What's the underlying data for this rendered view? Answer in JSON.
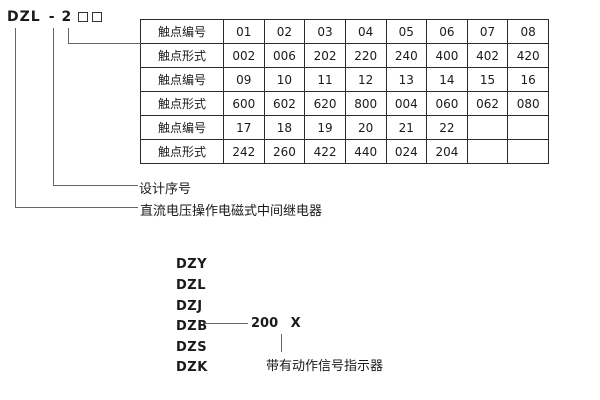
{
  "model_code": {
    "prefix": "DZL",
    "separator": "-",
    "design_number": "2"
  },
  "contact_table": {
    "rows": [
      {
        "label": "触点编号",
        "cells": [
          "01",
          "02",
          "03",
          "04",
          "05",
          "06",
          "07",
          "08"
        ]
      },
      {
        "label": "触点形式",
        "cells": [
          "002",
          "006",
          "202",
          "220",
          "240",
          "400",
          "402",
          "420"
        ]
      },
      {
        "label": "触点编号",
        "cells": [
          "09",
          "10",
          "11",
          "12",
          "13",
          "14",
          "15",
          "16"
        ]
      },
      {
        "label": "触点形式",
        "cells": [
          "600",
          "602",
          "620",
          "800",
          "004",
          "060",
          "062",
          "080"
        ]
      },
      {
        "label": "触点编号",
        "cells": [
          "17",
          "18",
          "19",
          "20",
          "21",
          "22",
          "",
          ""
        ]
      },
      {
        "label": "触点形式",
        "cells": [
          "242",
          "260",
          "422",
          "440",
          "024",
          "204",
          "",
          ""
        ]
      }
    ]
  },
  "callouts": {
    "design_label": "设计序号",
    "relay_label": "直流电压操作电磁式中间继电器"
  },
  "model_series": {
    "items": [
      "DZY",
      "DZL",
      "DZJ",
      "DZB",
      "DZS",
      "DZK"
    ],
    "dzb_note": {
      "number": "200",
      "x_mark": "X"
    },
    "indicator_label": "带有动作信号指示器"
  },
  "colors": {
    "background": "#ffffff",
    "line": "#666666",
    "table_border": "#2b2b2b",
    "text": "#1a1a1a"
  }
}
